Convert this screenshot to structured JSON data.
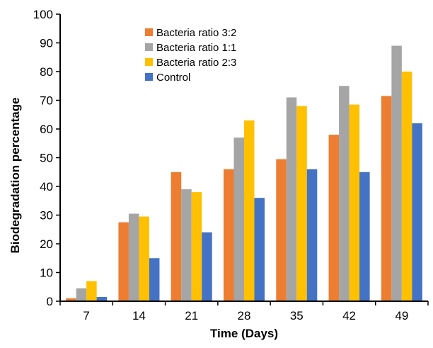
{
  "chart_data": {
    "type": "bar",
    "title": "",
    "xlabel": "Time (Days)",
    "ylabel": "Biodegradation  percentage",
    "ylim": [
      0,
      100
    ],
    "yticks": [
      0,
      10,
      20,
      30,
      40,
      50,
      60,
      70,
      80,
      90,
      100
    ],
    "categories": [
      "7",
      "14",
      "21",
      "28",
      "35",
      "42",
      "49"
    ],
    "grid": false,
    "legend_position": "top-left",
    "series": [
      {
        "name": "Bacteria ratio 3:2",
        "color": "#ED7D31",
        "values": [
          1,
          27.5,
          45,
          46,
          49.5,
          58,
          71.5
        ]
      },
      {
        "name": "Bacteria ratio 1:1",
        "color": "#A5A5A5",
        "values": [
          4.5,
          30.5,
          39,
          57,
          71,
          75,
          89
        ]
      },
      {
        "name": "Bacteria ratio 2:3",
        "color": "#FFC000",
        "values": [
          7,
          29.5,
          38,
          63,
          68,
          68.5,
          80
        ]
      },
      {
        "name": "Control",
        "color": "#4472C4",
        "values": [
          1.5,
          15,
          24,
          36,
          46,
          45,
          62
        ]
      }
    ]
  }
}
